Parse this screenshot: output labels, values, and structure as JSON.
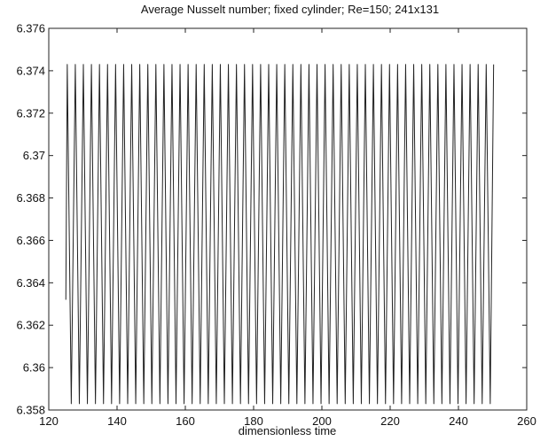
{
  "chart_data": {
    "type": "line",
    "title": "Average Nusselt number; fixed cylinder; Re=150; 241x131",
    "xlabel": "dimensionless time",
    "ylabel": "",
    "xlim": [
      120,
      260
    ],
    "ylim": [
      6.358,
      6.376
    ],
    "xticks": [
      120,
      140,
      160,
      180,
      200,
      220,
      240,
      260
    ],
    "yticks": [
      6.358,
      6.36,
      6.362,
      6.364,
      6.366,
      6.368,
      6.37,
      6.372,
      6.374,
      6.376
    ],
    "xtick_labels": [
      "120",
      "140",
      "160",
      "180",
      "200",
      "220",
      "240",
      "260"
    ],
    "ytick_labels": [
      "6.358",
      "6.36",
      "6.362",
      "6.364",
      "6.366",
      "6.368",
      "6.37",
      "6.372",
      "6.374",
      "6.376"
    ],
    "grid": false,
    "series": [
      {
        "color": "#222222",
        "t_start": 125.0,
        "t_end": 250.3,
        "y_start": 6.3632,
        "period": 2.36,
        "y_max": 6.3743,
        "y_min": 6.3583
      }
    ]
  }
}
